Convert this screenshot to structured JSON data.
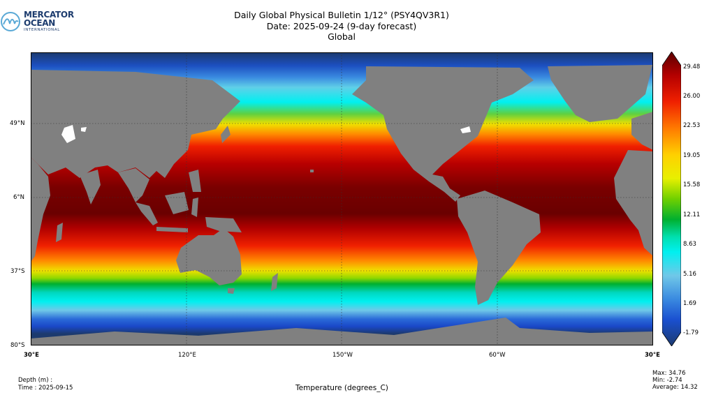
{
  "logo": {
    "line1": "MERCATOR",
    "line2": "OCEAN",
    "line3": "INTERNATIONAL",
    "icon": "mercator-wave-logo-icon",
    "color": "#1d3c6e",
    "accent": "#5aa9d6"
  },
  "title": {
    "line1": "Daily Global Physical Bulletin 1/12° (PSY4QV3R1)",
    "line2": "Date: 2025-09-24 (9-day forecast)",
    "line3": "Global"
  },
  "map": {
    "lat_labels": [
      "49°N",
      "6°N",
      "37°S",
      "80°S"
    ],
    "lon_labels": [
      "30°E",
      "120°E",
      "150°W",
      "60°W",
      "30°E"
    ],
    "grid": "dotted",
    "land_color": "#808080",
    "ocean_polar_color": "#1c3a6e"
  },
  "colorbar": {
    "ticks": [
      "29.48",
      "26.00",
      "22.53",
      "19.05",
      "15.58",
      "12.11",
      "8.63",
      "5.16",
      "1.69",
      "-1.79"
    ],
    "colors": [
      "#5a0000",
      "#b40000",
      "#f02000",
      "#ff7a00",
      "#ffd000",
      "#e8f000",
      "#70d000",
      "#00b030",
      "#00e0b0",
      "#00f0f0",
      "#70c8e8",
      "#3a8ae0",
      "#1a50d0",
      "#1c3a6e"
    ]
  },
  "footer": {
    "depth": "Depth (m) :",
    "time": "Time : 2025-09-15",
    "xlabel": "Temperature (degrees_C)",
    "max": "Max: 34.76",
    "min": "Min: -2.74",
    "average": "Average: 14.32"
  }
}
